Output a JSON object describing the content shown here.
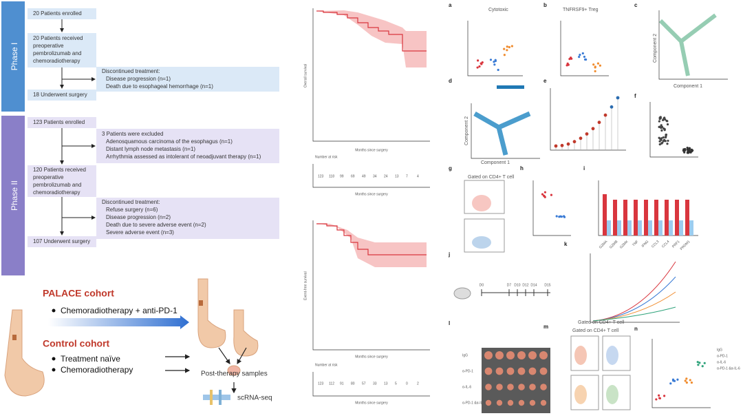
{
  "phase1": {
    "label": "Phase I",
    "enrolled": "20 Patients enrolled",
    "received": [
      "20 Patients received",
      "preoperative",
      "pembrolizumab and",
      "chemoradiotherapy"
    ],
    "surgery": "18 Underwent surgery",
    "discontinued": [
      "Discontinued treatment:",
      "Disease progression (n=1)",
      "Death due to esophageal hemorrhage (n=1)"
    ]
  },
  "phase2": {
    "label": "Phase II",
    "enrolled": "123 Patients enrolled",
    "excluded": [
      "3 Patients were excluded",
      "Adenosquamous carcinoma of the esophagus (n=1)",
      "Distant lymph node metastasis (n=1)",
      "Arrhythmia assessed as intolerant of neoadjuvant therapy (n=1)"
    ],
    "received": [
      "120 Patients received",
      "preoperative",
      "pembrolizumab and",
      "chemoradiotherapy"
    ],
    "surgery": "107 Underwent surgery",
    "discontinued": [
      "Discontinued treatment:",
      "Refuse surgery (n=6)",
      "Disease progression (n=2)",
      "Death due to severe adverse event (n=2)",
      "Severe adverse event (n=3)"
    ]
  },
  "cohorts": {
    "palace": {
      "title": "PALACE cohort",
      "items": [
        "Chemoradiotherapy + anti-PD-1"
      ]
    },
    "control": {
      "title": "Control cohort",
      "items": [
        "Treatment naïve",
        "Chemoradiotherapy"
      ]
    },
    "samples": "Post-therapy samples",
    "seq": "scRNA-seq"
  },
  "km": [
    {
      "ylabel": "Overall survival",
      "xlabel": "Months since surgery",
      "risk_title": "Number at risk",
      "risk": [
        "123",
        "118",
        "99",
        "69",
        "49",
        "34",
        "24",
        "13",
        "7",
        "4"
      ]
    },
    {
      "ylabel": "Event-free survival",
      "xlabel": "Months since surgery",
      "risk_title": "Number at risk",
      "risk": [
        "123",
        "112",
        "91",
        "80",
        "57",
        "33",
        "13",
        "5",
        "0",
        "2"
      ]
    }
  ],
  "panels": {
    "letters": [
      "a",
      "b",
      "c",
      "d",
      "e",
      "f",
      "g",
      "h",
      "i",
      "j",
      "k",
      "l",
      "m",
      "n"
    ],
    "a": {
      "title": "Cytotoxic"
    },
    "b": {
      "title": "TNFRSF9+ Treg"
    },
    "c": {
      "xlabel": "Component 1",
      "ylabel": "Component 2"
    },
    "g": {
      "title": "Gated on CD4+ T cell"
    },
    "timeline": [
      "D0",
      "D7",
      "D10",
      "D12",
      "D14",
      "D15"
    ],
    "groups": [
      "IgG",
      "α-PD-1",
      "α-IL-6",
      "α-PD-1 &α-IL-6"
    ],
    "genes": [
      "GZMA",
      "GZMB",
      "GZMK",
      "TNF",
      "IFNG",
      "CCL3",
      "CCL4",
      "PRF1",
      "PRDM1"
    ]
  }
}
